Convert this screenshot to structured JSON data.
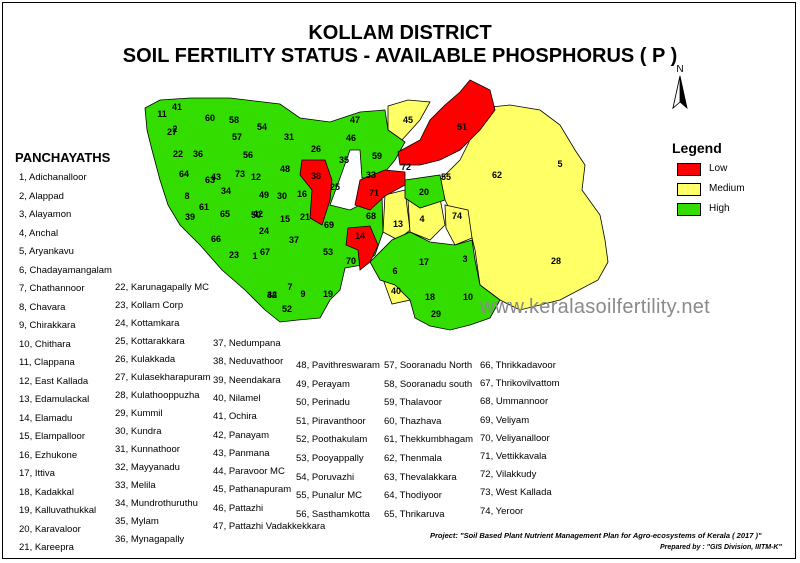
{
  "title_line1": "KOLLAM DISTRICT",
  "title_line2": "SOIL FERTILITY STATUS - AVAILABLE PHOSPHORUS ( P )",
  "north_label": "N",
  "panchayaths_title": "PANCHAYATHS",
  "legend": {
    "title": "Legend",
    "items": [
      {
        "label": "Low",
        "color": "#ff0000"
      },
      {
        "label": "Medium",
        "color": "#ffff66"
      },
      {
        "label": "High",
        "color": "#33dd00"
      }
    ]
  },
  "watermark": "www.keralasoilfertility.net",
  "project": "Project: \"Soil Based Plant Nutrient Management Plan for Agro-ecosystems of Kerala ( 2017 )\"",
  "prepared": "Prepared by : \"GIS Division, IIITM-K\"",
  "panchayaths": [
    "1, Adichanalloor",
    "2, Alappad",
    "3, Alayamon",
    "4, Anchal",
    "5, Aryankavu",
    "6, Chadayamangalam",
    "7, Chathannoor",
    "8, Chavara",
    "9, Chirakkara",
    "10, Chithara",
    "11, Clappana",
    "12, East Kallada",
    "13, Edamulackal",
    "14, Elamadu",
    "15, Elampalloor",
    "16, Ezhukone",
    "17, Ittiva",
    "18, Kadakkal",
    "19, Kalluvathukkal",
    "20, Karavaloor",
    "21, Kareepra",
    "22, Karunagapally MC",
    "23, Kollam Corp",
    "24, Kottamkara",
    "25, Kottarakkara",
    "26, Kulakkada",
    "27, Kulasekharapuram",
    "28, Kulathooppuzha",
    "29, Kummil",
    "30, Kundra",
    "31, Kunnathoor",
    "32, Mayyanadu",
    "33, Melila",
    "34, Mundrothuruthu",
    "35, Mylam",
    "36, Mynagapally",
    "37, Nedumpana",
    "38, Neduvathoor",
    "39, Neendakara",
    "40, Nilamel",
    "41, Ochira",
    "42, Panayam",
    "43, Panmana",
    "44, Paravoor MC",
    "45, Pathanapuram",
    "46, Pattazhi",
    "47, Pattazhi Vadakkekkara",
    "48, Pavithreswaram",
    "49, Perayam",
    "50, Perinadu",
    "51, Piravanthoor",
    "52, Poothakulam",
    "53, Pooyappally",
    "54, Poruvazhi",
    "55, Punalur MC",
    "56, Sasthamkotta",
    "57, Sooranadu North",
    "58, Sooranadu south",
    "59, Thalavoor",
    "60, Thazhava",
    "61, Thekkumbhagam",
    "62, Thenmala",
    "63, Thevalakkara",
    "64, Thodiyoor",
    "65, Thrikaruva",
    "66, Thrikkadavoor",
    "67, Thrikovilvattom",
    "68, Ummannoor",
    "69, Veliyam",
    "70, Veliyanalloor",
    "71, Vettikkavala",
    "72, Vilakkudy",
    "73, West Kallada",
    "74, Yeroor"
  ],
  "map_regions": [
    {
      "id": "1",
      "status": "High"
    },
    {
      "id": "2",
      "status": "High"
    },
    {
      "id": "3",
      "status": "High"
    },
    {
      "id": "4",
      "status": "Medium"
    },
    {
      "id": "5",
      "status": "Medium"
    },
    {
      "id": "6",
      "status": "High"
    },
    {
      "id": "7",
      "status": "High"
    },
    {
      "id": "8",
      "status": "High"
    },
    {
      "id": "9",
      "status": "High"
    },
    {
      "id": "10",
      "status": "High"
    },
    {
      "id": "11",
      "status": "High"
    },
    {
      "id": "12",
      "status": "High"
    },
    {
      "id": "13",
      "status": "Medium"
    },
    {
      "id": "14",
      "status": "Low"
    },
    {
      "id": "15",
      "status": "High"
    },
    {
      "id": "16",
      "status": "High"
    },
    {
      "id": "17",
      "status": "High"
    },
    {
      "id": "18",
      "status": "High"
    },
    {
      "id": "19",
      "status": "High"
    },
    {
      "id": "20",
      "status": "High"
    },
    {
      "id": "21",
      "status": "High"
    },
    {
      "id": "22",
      "status": "High"
    },
    {
      "id": "23",
      "status": "High"
    },
    {
      "id": "24",
      "status": "High"
    },
    {
      "id": "25",
      "status": "High"
    },
    {
      "id": "26",
      "status": "High"
    },
    {
      "id": "27",
      "status": "High"
    },
    {
      "id": "28",
      "status": "Medium"
    },
    {
      "id": "29",
      "status": "High"
    },
    {
      "id": "30",
      "status": "High"
    },
    {
      "id": "31",
      "status": "High"
    },
    {
      "id": "32",
      "status": "High"
    },
    {
      "id": "33",
      "status": "High"
    },
    {
      "id": "34",
      "status": "High"
    },
    {
      "id": "35",
      "status": "High"
    },
    {
      "id": "36",
      "status": "High"
    },
    {
      "id": "37",
      "status": "High"
    },
    {
      "id": "38",
      "status": "Low"
    },
    {
      "id": "39",
      "status": "Medium"
    },
    {
      "id": "40",
      "status": "Medium"
    },
    {
      "id": "41",
      "status": "High"
    },
    {
      "id": "42",
      "status": "High"
    },
    {
      "id": "43",
      "status": "High"
    },
    {
      "id": "44",
      "status": "High"
    },
    {
      "id": "45",
      "status": "Medium"
    },
    {
      "id": "46",
      "status": "High"
    },
    {
      "id": "47",
      "status": "High"
    },
    {
      "id": "48",
      "status": "High"
    },
    {
      "id": "49",
      "status": "High"
    },
    {
      "id": "50",
      "status": "High"
    },
    {
      "id": "51",
      "status": "Low"
    },
    {
      "id": "52",
      "status": "High"
    },
    {
      "id": "53",
      "status": "Medium"
    },
    {
      "id": "54",
      "status": "High"
    },
    {
      "id": "55",
      "status": "High"
    },
    {
      "id": "56",
      "status": "High"
    },
    {
      "id": "57",
      "status": "High"
    },
    {
      "id": "58",
      "status": "High"
    },
    {
      "id": "59",
      "status": "Medium"
    },
    {
      "id": "60",
      "status": "High"
    },
    {
      "id": "61",
      "status": "High"
    },
    {
      "id": "62",
      "status": "Medium"
    },
    {
      "id": "63",
      "status": "High"
    },
    {
      "id": "64",
      "status": "High"
    },
    {
      "id": "65",
      "status": "High"
    },
    {
      "id": "66",
      "status": "High"
    },
    {
      "id": "67",
      "status": "High"
    },
    {
      "id": "68",
      "status": "High"
    },
    {
      "id": "69",
      "status": "High"
    },
    {
      "id": "70",
      "status": "High"
    },
    {
      "id": "71",
      "status": "Low"
    },
    {
      "id": "72",
      "status": "Low"
    },
    {
      "id": "73",
      "status": "High"
    },
    {
      "id": "74",
      "status": "Medium"
    }
  ]
}
